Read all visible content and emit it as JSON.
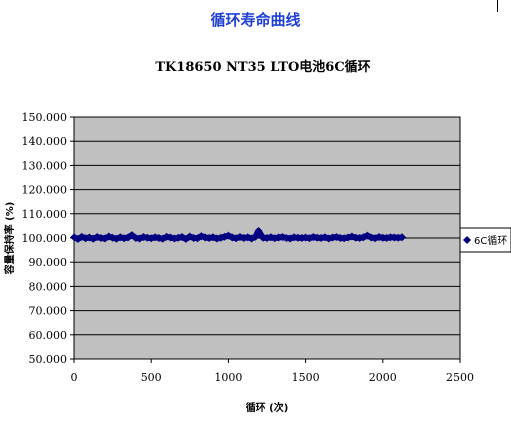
{
  "page": {
    "heading": "循环寿命曲线"
  },
  "chart_data": {
    "type": "scatter",
    "title": "TK18650 NT35 LTO电池6C循环",
    "xlabel": "循环 (次)",
    "ylabel": "容量保持率 (%)",
    "xlim": [
      0,
      2500
    ],
    "ylim": [
      50,
      150
    ],
    "xticks": [
      0,
      500,
      1000,
      1500,
      2000,
      2500
    ],
    "yticks": [
      50,
      60,
      70,
      80,
      90,
      100,
      110,
      120,
      130,
      140,
      150
    ],
    "ytick_format": "0.000",
    "grid": true,
    "plot_background": "#c0c0c0",
    "legend_position": "right",
    "series": [
      {
        "name": "6C循环",
        "marker": "diamond",
        "color": "#000080",
        "x": [
          1,
          25,
          50,
          75,
          100,
          125,
          150,
          175,
          200,
          225,
          250,
          275,
          300,
          325,
          350,
          375,
          400,
          425,
          450,
          475,
          500,
          525,
          550,
          575,
          600,
          625,
          650,
          675,
          700,
          725,
          750,
          775,
          800,
          825,
          850,
          875,
          900,
          925,
          950,
          975,
          1000,
          1025,
          1050,
          1075,
          1100,
          1125,
          1150,
          1175,
          1195,
          1225,
          1250,
          1275,
          1300,
          1325,
          1350,
          1375,
          1400,
          1425,
          1450,
          1475,
          1500,
          1525,
          1550,
          1575,
          1600,
          1625,
          1650,
          1675,
          1700,
          1725,
          1750,
          1775,
          1800,
          1825,
          1850,
          1875,
          1900,
          1925,
          1950,
          1975,
          2000,
          2025,
          2050,
          2075,
          2100,
          2125
        ],
        "y": [
          100.3,
          99.6,
          100.5,
          99.9,
          100.2,
          99.7,
          100.4,
          100.0,
          99.8,
          100.6,
          100.1,
          99.7,
          100.3,
          99.9,
          100.2,
          101.2,
          100.0,
          99.8,
          100.4,
          100.1,
          99.9,
          100.3,
          100.0,
          99.7,
          100.5,
          100.2,
          99.8,
          100.1,
          100.4,
          99.6,
          100.6,
          100.0,
          99.9,
          100.8,
          100.2,
          100.0,
          100.3,
          99.8,
          100.1,
          100.5,
          101.0,
          100.2,
          99.9,
          100.4,
          100.0,
          100.3,
          99.8,
          100.5,
          102.9,
          100.1,
          100.0,
          100.3,
          99.9,
          100.2,
          100.4,
          100.0,
          99.8,
          100.3,
          100.1,
          100.0,
          100.2,
          99.9,
          100.4,
          100.1,
          100.0,
          100.3,
          99.8,
          100.2,
          100.4,
          100.0,
          99.9,
          100.2,
          100.6,
          100.1,
          100.0,
          100.3,
          101.0,
          100.2,
          99.9,
          100.4,
          100.1,
          100.0,
          100.3,
          100.2,
          100.1,
          100.3
        ]
      }
    ]
  }
}
